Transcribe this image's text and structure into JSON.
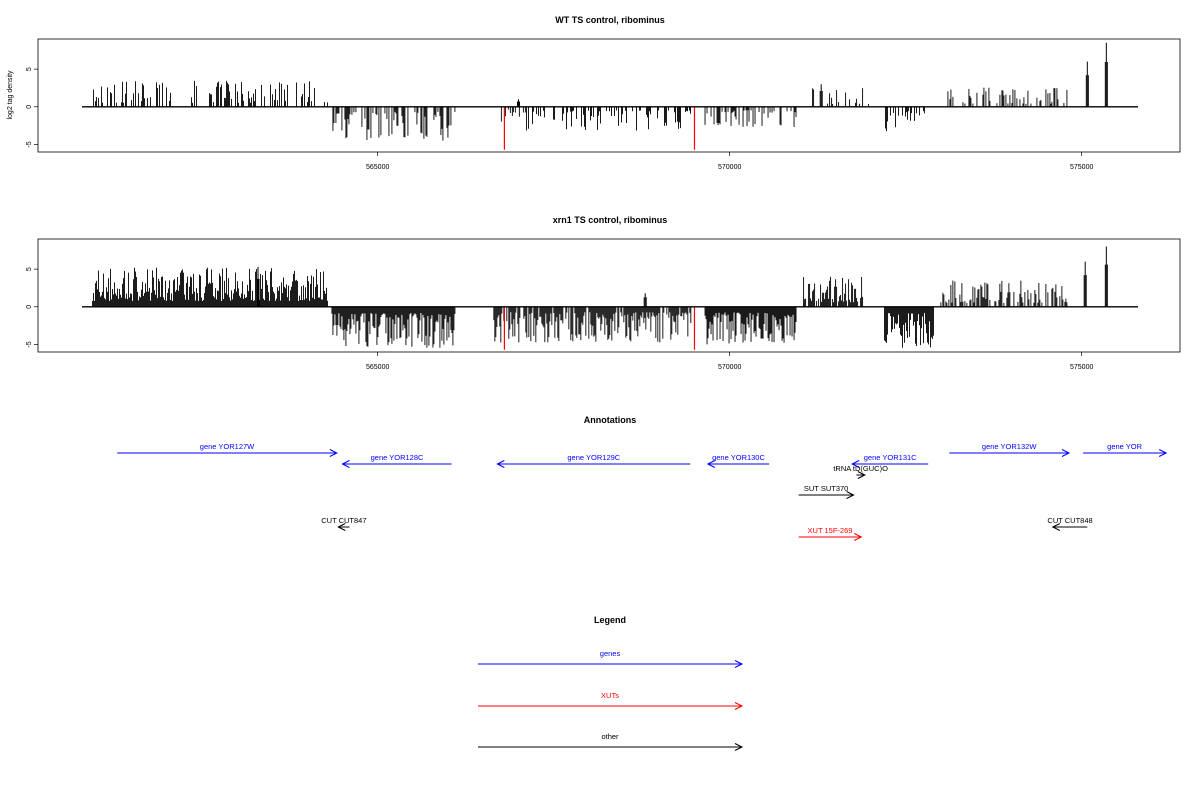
{
  "colors": {
    "genes": "#0000ff",
    "xuts": "#ff0000",
    "other": "#000000",
    "axis": "#000000",
    "marker": "#ff0000"
  },
  "chart_data": [
    {
      "type": "bar",
      "title": "WT TS control, ribominus",
      "ylabel": "log2 tag density",
      "xlim": [
        560800,
        575800
      ],
      "ylim": [
        -6,
        9
      ],
      "x_ticks": [
        565000,
        570000,
        575000
      ],
      "x_tick_labels": [
        "565000",
        "570000",
        "575000"
      ],
      "y_ticks": [
        -5,
        0,
        5
      ],
      "y_tick_labels": [
        "-5",
        "0",
        "5"
      ],
      "markers": [
        566800,
        569500
      ],
      "segments": [
        {
          "start": 560950,
          "end": 564300,
          "strand": "+",
          "max": 3.5,
          "density": 0.35
        },
        {
          "start": 564350,
          "end": 566100,
          "strand": "-",
          "max": 4.5,
          "density": 0.5
        },
        {
          "start": 566700,
          "end": 567100,
          "strand": "-",
          "max": 2.2,
          "density": 0.25
        },
        {
          "start": 567100,
          "end": 569450,
          "strand": "-",
          "max": 3.2,
          "density": 0.4
        },
        {
          "start": 569650,
          "end": 570950,
          "strand": "-",
          "max": 2.8,
          "density": 0.4
        },
        {
          "start": 571050,
          "end": 572000,
          "strand": "+",
          "max": 2.5,
          "density": 0.2
        },
        {
          "start": 572200,
          "end": 572800,
          "strand": "-",
          "max": 3.8,
          "density": 0.5
        },
        {
          "start": 573100,
          "end": 574800,
          "strand": "+",
          "max": 2.6,
          "density": 0.35
        }
      ],
      "spikes": [
        {
          "x": 575080,
          "value": 6.0
        },
        {
          "x": 575350,
          "value": 8.5
        },
        {
          "x": 567000,
          "value": 1.0
        },
        {
          "x": 571300,
          "value": 3.0
        }
      ]
    },
    {
      "type": "bar",
      "title": "xrn1 TS control, ribominus",
      "ylabel": "",
      "xlim": [
        560800,
        575800
      ],
      "ylim": [
        -6,
        9
      ],
      "x_ticks": [
        565000,
        570000,
        575000
      ],
      "x_tick_labels": [
        "565000",
        "570000",
        "575000"
      ],
      "y_ticks": [
        -5,
        0,
        5
      ],
      "y_tick_labels": [
        "-5",
        "0",
        "5"
      ],
      "markers": [
        566800,
        569500
      ],
      "segments": [
        {
          "start": 560950,
          "end": 564300,
          "strand": "+",
          "max": 5.2,
          "density": 1.0
        },
        {
          "start": 564350,
          "end": 566100,
          "strand": "-",
          "max": 5.5,
          "density": 1.0
        },
        {
          "start": 566650,
          "end": 569450,
          "strand": "-",
          "max": 4.8,
          "density": 0.85
        },
        {
          "start": 569650,
          "end": 570950,
          "strand": "-",
          "max": 5.0,
          "density": 1.0
        },
        {
          "start": 571050,
          "end": 571900,
          "strand": "+",
          "max": 4.0,
          "density": 0.9
        },
        {
          "start": 572200,
          "end": 572900,
          "strand": "-",
          "max": 5.5,
          "density": 1.0
        },
        {
          "start": 573000,
          "end": 574800,
          "strand": "+",
          "max": 3.5,
          "density": 0.5
        }
      ],
      "spikes": [
        {
          "x": 575050,
          "value": 6.0
        },
        {
          "x": 575350,
          "value": 8.0
        },
        {
          "x": 563300,
          "value": 5.3
        },
        {
          "x": 568800,
          "value": 1.8
        }
      ]
    }
  ],
  "annotations": {
    "title": "Annotations",
    "features": [
      {
        "label": "gene YOR127W",
        "type": "gene",
        "start": 561300,
        "end": 564420,
        "strand": "+",
        "row": 0
      },
      {
        "label": "gene YOR128C",
        "type": "gene",
        "start": 564500,
        "end": 566050,
        "strand": "-",
        "row": 1
      },
      {
        "label": "gene YOR129C",
        "type": "gene",
        "start": 566700,
        "end": 569440,
        "strand": "-",
        "row": 1
      },
      {
        "label": "gene YOR130C",
        "type": "gene",
        "start": 569690,
        "end": 570560,
        "strand": "-",
        "row": 1
      },
      {
        "label": "gene YOR131C",
        "type": "gene",
        "start": 571740,
        "end": 572820,
        "strand": "-",
        "row": 1
      },
      {
        "label": "gene YOR132W",
        "type": "gene",
        "start": 573120,
        "end": 574820,
        "strand": "+",
        "row": 0
      },
      {
        "label": "gene YOR",
        "type": "gene",
        "start": 575020,
        "end": 576200,
        "strand": "+",
        "row": 0
      },
      {
        "label": "tRNA tD(GUC)O",
        "type": "other",
        "start": 571800,
        "end": 571920,
        "strand": "+",
        "row": 2
      },
      {
        "label": "SUT SUT370",
        "type": "other",
        "start": 570980,
        "end": 571760,
        "strand": "+",
        "row": 3
      },
      {
        "label": "CUT CUT847",
        "type": "other",
        "start": 564440,
        "end": 564600,
        "strand": "-",
        "row": 4
      },
      {
        "label": "CUT CUT848",
        "type": "other",
        "start": 574590,
        "end": 575080,
        "strand": "-",
        "row": 4
      },
      {
        "label": "XUT 15F-269",
        "type": "xut",
        "start": 570980,
        "end": 571870,
        "strand": "+",
        "row": 5
      }
    ]
  },
  "legend": {
    "title": "Legend",
    "items": [
      {
        "label": "genes",
        "color": "#0000ff"
      },
      {
        "label": "XUTs",
        "color": "#ff0000"
      },
      {
        "label": "other",
        "color": "#000000"
      }
    ]
  }
}
